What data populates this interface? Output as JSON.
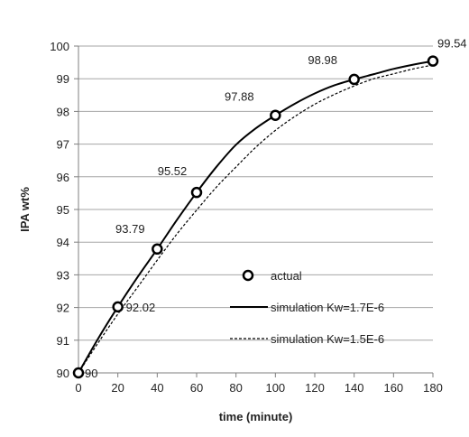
{
  "chart_data": {
    "type": "line",
    "title": "",
    "xlabel": "time (minute)",
    "ylabel": "IPA  wt%",
    "xlim": [
      0,
      180
    ],
    "ylim": [
      90,
      100
    ],
    "xticks": [
      0,
      20,
      40,
      60,
      80,
      100,
      120,
      140,
      160,
      180
    ],
    "yticks": [
      90,
      91,
      92,
      93,
      94,
      95,
      96,
      97,
      98,
      99,
      100
    ],
    "grid": {
      "horizontal": true,
      "vertical": false
    },
    "legend_position": "bottom-right",
    "series": [
      {
        "name": "actual",
        "kind": "scatter",
        "marker": "open-circle",
        "color": "#000000",
        "x": [
          0,
          20,
          40,
          60,
          100,
          140,
          180
        ],
        "y": [
          90,
          92.02,
          93.79,
          95.52,
          97.88,
          98.98,
          99.54
        ],
        "labels": [
          "90",
          "92.02",
          "93.79",
          "95.52",
          "97.88",
          "98.98",
          "99.54"
        ]
      },
      {
        "name": "simulation Kw=1.7E-6",
        "kind": "line",
        "style": "solid",
        "color": "#000000",
        "x": [
          0,
          10,
          20,
          30,
          40,
          50,
          60,
          70,
          80,
          90,
          100,
          110,
          120,
          130,
          140,
          150,
          160,
          170,
          180
        ],
        "y": [
          90,
          91.05,
          92.02,
          92.93,
          93.79,
          94.68,
          95.52,
          96.3,
          96.98,
          97.48,
          97.88,
          98.24,
          98.55,
          98.8,
          98.98,
          99.14,
          99.3,
          99.43,
          99.54
        ]
      },
      {
        "name": "simulation Kw=1.5E-6",
        "kind": "line",
        "style": "dashed",
        "color": "#000000",
        "x": [
          0,
          10,
          20,
          30,
          40,
          50,
          60,
          70,
          80,
          90,
          100,
          110,
          120,
          130,
          140,
          150,
          160,
          170,
          180
        ],
        "y": [
          90,
          90.92,
          91.8,
          92.62,
          93.45,
          94.25,
          94.98,
          95.68,
          96.3,
          96.9,
          97.42,
          97.85,
          98.22,
          98.52,
          98.78,
          99.0,
          99.15,
          99.3,
          99.42
        ]
      }
    ]
  }
}
